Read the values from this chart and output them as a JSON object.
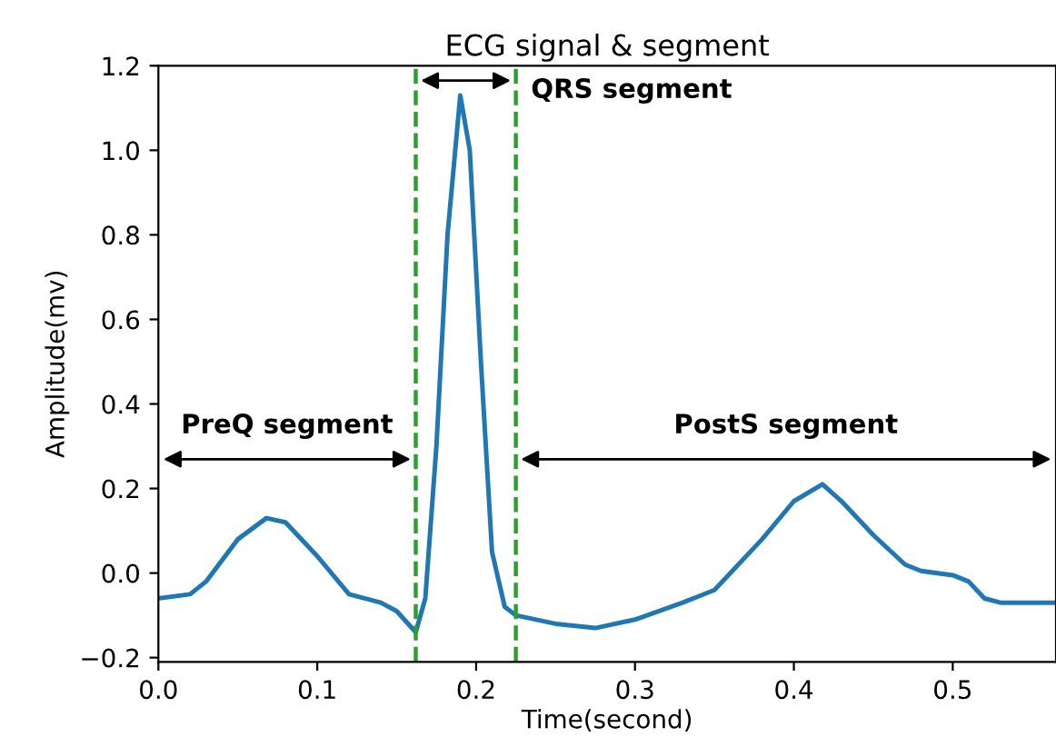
{
  "chart_data": {
    "type": "line",
    "title": "ECG signal & segment",
    "xlabel": "Time(second)",
    "ylabel": "Amplitude(mv)",
    "x": [
      0.0,
      0.02,
      0.03,
      0.05,
      0.068,
      0.08,
      0.1,
      0.12,
      0.14,
      0.15,
      0.162,
      0.168,
      0.175,
      0.182,
      0.19,
      0.196,
      0.203,
      0.21,
      0.218,
      0.225,
      0.25,
      0.275,
      0.3,
      0.33,
      0.35,
      0.38,
      0.4,
      0.418,
      0.43,
      0.45,
      0.47,
      0.48,
      0.5,
      0.51,
      0.52,
      0.53,
      0.565
    ],
    "series": [
      {
        "color": "#1f77b4",
        "values": [
          -0.06,
          -0.05,
          -0.02,
          0.08,
          0.13,
          0.12,
          0.04,
          -0.05,
          -0.07,
          -0.09,
          -0.14,
          -0.06,
          0.3,
          0.8,
          1.13,
          1.0,
          0.5,
          0.05,
          -0.08,
          -0.1,
          -0.12,
          -0.13,
          -0.11,
          -0.07,
          -0.04,
          0.08,
          0.17,
          0.21,
          0.17,
          0.09,
          0.02,
          0.005,
          -0.005,
          -0.02,
          -0.06,
          -0.07,
          -0.07
        ]
      }
    ],
    "xlim": [
      0.0,
      0.565
    ],
    "xticks": [
      {
        "value": 0.0,
        "label": "0.0"
      },
      0.1,
      0.2,
      0.3,
      0.4,
      0.5
    ],
    "ylim": [
      -0.21,
      1.2
    ],
    "yticks": [
      {
        "value": -0.2,
        "label": "−0.2"
      },
      {
        "value": 0.0,
        "label": "0.0"
      },
      0.2,
      0.4,
      0.6,
      0.8,
      {
        "value": 1.0,
        "label": "1.0"
      },
      1.2
    ],
    "ref_lines": [
      {
        "axis": "x",
        "value": 0.162,
        "color": "#2ca02c",
        "line_style": "dashed"
      },
      {
        "axis": "x",
        "value": 0.225,
        "color": "#2ca02c",
        "line_style": "dashed"
      }
    ],
    "annotations": [
      "PreQ segment",
      "QRS segment",
      "PostS segment"
    ],
    "grid": false,
    "legend": false,
    "marker": "none",
    "line_style": "solid"
  }
}
